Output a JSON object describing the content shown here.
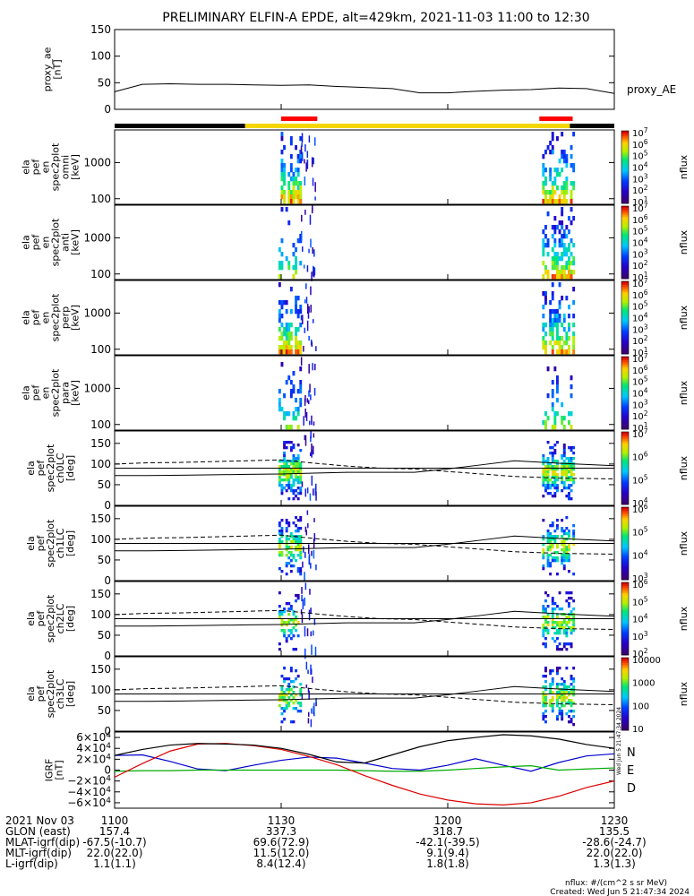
{
  "title": "PRELIMINARY ELFIN-A EPDE, alt=429km, 2021-11-03 11:00 to 12:30",
  "colors": {
    "bar_black": "#000000",
    "bar_yellow": "#f4d600",
    "bar_red": "#ff0000",
    "grf_n": "#0000cc",
    "grf_e": "#00aa00",
    "grf_d": "#dd0000",
    "grf_tot": "#000000"
  },
  "chart_data": [
    {
      "type": "line",
      "panel": "proxy_ae",
      "ylabel": [
        "proxy_ae",
        "[nT]"
      ],
      "ylim": [
        0,
        150
      ],
      "yticks": [
        "0",
        "50",
        "100",
        "150"
      ],
      "legend": "proxy_AE",
      "x_minutes": [
        0,
        5,
        10,
        15,
        20,
        25,
        30,
        35,
        40,
        45,
        50,
        55,
        60,
        65,
        70,
        75,
        80,
        85,
        90
      ],
      "values": [
        33,
        47,
        48,
        47,
        47,
        46,
        45,
        46,
        43,
        41,
        39,
        31,
        31,
        34,
        36,
        37,
        40,
        39,
        30
      ]
    },
    {
      "type": "heatmap",
      "panel": "omni",
      "ylabel": [
        "ela",
        "pef",
        "en",
        "spec2plot",
        "omni",
        "[keV]"
      ],
      "yscale": "log",
      "ylim": [
        70,
        8000
      ],
      "yticks": [
        "100",
        "1000"
      ],
      "colorbar": {
        "label": "nflux",
        "ticks": [
          "10^1",
          "10^2",
          "10^3",
          "10^4",
          "10^5",
          "10^6",
          "10^7"
        ]
      }
    },
    {
      "type": "heatmap",
      "panel": "anti",
      "ylabel": [
        "ela",
        "pef",
        "en",
        "spec2plot",
        "anti",
        "[keV]"
      ],
      "yscale": "log",
      "ylim": [
        70,
        8000
      ],
      "yticks": [
        "100",
        "1000"
      ],
      "colorbar": {
        "label": "nflux",
        "ticks": [
          "10^1",
          "10^2",
          "10^3",
          "10^4",
          "10^5",
          "10^6",
          "10^7"
        ]
      }
    },
    {
      "type": "heatmap",
      "panel": "perp",
      "ylabel": [
        "ela",
        "pef",
        "en",
        "spec2plot",
        "perp",
        "[keV]"
      ],
      "yscale": "log",
      "ylim": [
        70,
        8000
      ],
      "yticks": [
        "100",
        "1000"
      ],
      "colorbar": {
        "label": "nflux",
        "ticks": [
          "10^1",
          "10^2",
          "10^3",
          "10^4",
          "10^5",
          "10^6",
          "10^7"
        ]
      }
    },
    {
      "type": "heatmap",
      "panel": "para",
      "ylabel": [
        "ela",
        "pef",
        "en",
        "spec2plot",
        "para",
        "[keV]"
      ],
      "yscale": "log",
      "ylim": [
        70,
        8000
      ],
      "yticks": [
        "100",
        "1000"
      ],
      "colorbar": {
        "label": "nflux",
        "ticks": [
          "10^1",
          "10^2",
          "10^3",
          "10^4",
          "10^5",
          "10^6",
          "10^7"
        ]
      }
    },
    {
      "type": "heatmap",
      "panel": "ch0LC",
      "ylabel": [
        "ela",
        "pef",
        "spec2plot",
        "ch0LC",
        "[deg]"
      ],
      "ylim": [
        0,
        180
      ],
      "yticks": [
        "0",
        "50",
        "100",
        "150"
      ],
      "colorbar": {
        "label": "nflux",
        "ticks": [
          "10^4",
          "10^5",
          "10^6",
          "10^7"
        ]
      }
    },
    {
      "type": "heatmap",
      "panel": "ch1LC",
      "ylabel": [
        "ela",
        "pef",
        "spec2plot",
        "ch1LC",
        "[deg]"
      ],
      "ylim": [
        0,
        180
      ],
      "yticks": [
        "0",
        "50",
        "100",
        "150"
      ],
      "colorbar": {
        "label": "nflux",
        "ticks": [
          "10^3",
          "10^4",
          "10^5",
          "10^6"
        ]
      }
    },
    {
      "type": "heatmap",
      "panel": "ch2LC",
      "ylabel": [
        "ela",
        "pef",
        "spec2plot",
        "ch2LC",
        "[deg]"
      ],
      "ylim": [
        0,
        180
      ],
      "yticks": [
        "0",
        "50",
        "100",
        "150"
      ],
      "colorbar": {
        "label": "nflux",
        "ticks": [
          "10^2",
          "10^3",
          "10^4",
          "10^5",
          "10^6"
        ]
      }
    },
    {
      "type": "heatmap",
      "panel": "ch3LC",
      "ylabel": [
        "ela",
        "pef",
        "spec2plot",
        "ch3LC",
        "[deg]"
      ],
      "ylim": [
        0,
        180
      ],
      "yticks": [
        "0",
        "50",
        "100",
        "150"
      ],
      "colorbar": {
        "label": "nflux",
        "ticks": [
          "10",
          "100",
          "1000",
          "10000"
        ]
      }
    },
    {
      "type": "line",
      "panel": "IGRF",
      "ylabel": [
        "IGRF",
        "[nT]"
      ],
      "ylim": [
        -70000,
        70000
      ],
      "yticks": [
        "6×10^4",
        "4×10^4",
        "2×10^4",
        "0",
        "−2×10^4",
        "−4×10^4",
        "−6×10^4"
      ],
      "x_minutes": [
        0,
        5,
        10,
        15,
        20,
        25,
        30,
        35,
        40,
        45,
        50,
        55,
        60,
        65,
        70,
        75,
        80,
        85,
        90
      ],
      "series": [
        {
          "name": "N",
          "values": [
            27000,
            28000,
            16000,
            2000,
            -1000,
            9000,
            18000,
            24000,
            22000,
            13000,
            3000,
            0,
            9000,
            21000,
            9000,
            -2000,
            14000,
            26000,
            30000
          ]
        },
        {
          "name": "E",
          "values": [
            -2000,
            -1000,
            -1000,
            0,
            0,
            0,
            0,
            0,
            0,
            -1000,
            -2000,
            -2000,
            0,
            3000,
            6000,
            8000,
            0,
            2000,
            4000
          ]
        },
        {
          "name": "D",
          "values": [
            -13000,
            12000,
            35000,
            48000,
            49000,
            45000,
            38000,
            25000,
            10000,
            -10000,
            -28000,
            -44000,
            -55000,
            -62000,
            -64000,
            -60000,
            -48000,
            -32000,
            -20000
          ]
        },
        {
          "name": "",
          "values": [
            27000,
            38000,
            46000,
            49000,
            48000,
            46000,
            40000,
            29000,
            15000,
            13000,
            28000,
            43000,
            54000,
            60000,
            65000,
            63000,
            57000,
            47000,
            40000
          ]
        }
      ]
    }
  ],
  "side_stamp": "Wed Jun  5 21:47:34 2024",
  "xaxis": {
    "rows": [
      {
        "label": "2021 Nov 03",
        "values": [
          "1100",
          "1130",
          "1200",
          "1230"
        ]
      },
      {
        "label": "GLON (east)",
        "values": [
          "157.4",
          "337.3",
          "318.7",
          "135.5"
        ]
      },
      {
        "label": "MLAT-igrf(dip)",
        "values": [
          "-67.5(-10.7)",
          "69.6(72.9)",
          "-42.1(-39.5)",
          "-28.6(-24.7)"
        ]
      },
      {
        "label": "MLT-igrf(dip)",
        "values": [
          "22.0(22.0)",
          "11.5(12.0)",
          "9.1(9.4)",
          "22.0(22.0)"
        ]
      },
      {
        "label": "L-igrf(dip)",
        "values": [
          "1.1(1.1)",
          "8.4(12.4)",
          "1.8(1.8)",
          "1.3(1.3)"
        ]
      }
    ]
  },
  "footer": {
    "units": "nflux: #/(cm^2 s sr MeV)",
    "created": "Created: Wed Jun  5 21:47:34 2024"
  }
}
